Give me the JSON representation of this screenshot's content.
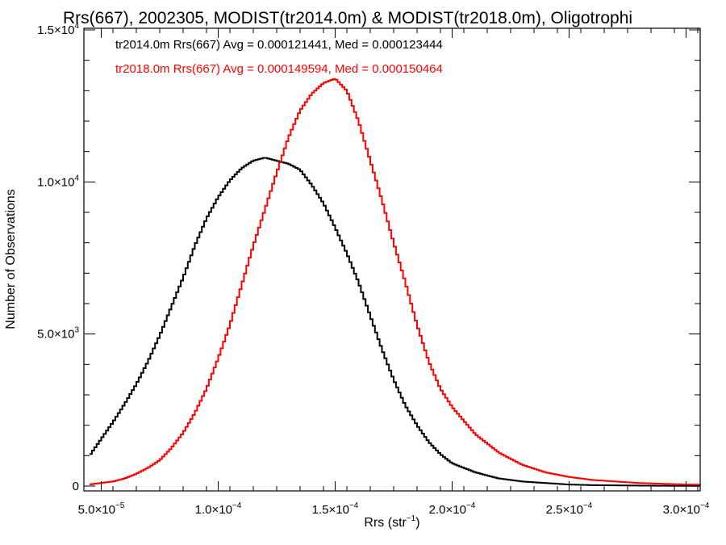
{
  "chart_data": {
    "type": "line",
    "title": "Rrs(667), 2002305, MODIST(tr2014.0m) & MODIST(tr2018.0m), Oligotrophi",
    "xlabel": "Rrs (str",
    "xlabel_sup": "−1",
    "xlabel_end": ")",
    "ylabel": "Number of Observations",
    "xlim": [
      4.5e-05,
      0.00031
    ],
    "ylim": [
      0,
      15000
    ],
    "x_ticks": [
      {
        "value": 5e-05,
        "mant": "5.0×10",
        "exp": "−5"
      },
      {
        "value": 0.0001,
        "mant": "1.0×10",
        "exp": "−4"
      },
      {
        "value": 0.00015,
        "mant": "1.5×10",
        "exp": "−4"
      },
      {
        "value": 0.0002,
        "mant": "2.0×10",
        "exp": "−4"
      },
      {
        "value": 0.00025,
        "mant": "2.5×10",
        "exp": "−4"
      },
      {
        "value": 0.0003,
        "mant": "3.0×10",
        "exp": "−4"
      }
    ],
    "y_ticks": [
      {
        "value": 0,
        "mant": "0",
        "exp": ""
      },
      {
        "value": 5000,
        "mant": "5.0×10",
        "exp": "3"
      },
      {
        "value": 10000,
        "mant": "1.0×10",
        "exp": "4"
      },
      {
        "value": 15000,
        "mant": "1.5×10",
        "exp": "4"
      }
    ],
    "grid": false,
    "legend_position": "top-left",
    "series": [
      {
        "name": "tr2014.0m Rrs(667) Avg = 0.000121441, Med = 0.000123444",
        "color": "#000000",
        "x": [
          4.5e-05,
          5e-05,
          5.5e-05,
          6e-05,
          6.5e-05,
          7e-05,
          7.5e-05,
          8e-05,
          8.5e-05,
          9e-05,
          9.5e-05,
          0.0001,
          0.000105,
          0.00011,
          0.000115,
          0.00012,
          0.000125,
          0.00013,
          0.000135,
          0.00014,
          0.000145,
          0.00015,
          0.000155,
          0.00016,
          0.000165,
          0.00017,
          0.000175,
          0.00018,
          0.000185,
          0.00019,
          0.000195,
          0.0002,
          0.00021,
          0.00022,
          0.00023,
          0.00024,
          0.00025,
          0.00026,
          0.00028,
          0.0003,
          0.00031
        ],
        "y": [
          1000,
          1550,
          2100,
          2700,
          3350,
          4100,
          4950,
          5900,
          6850,
          7900,
          8800,
          9500,
          10050,
          10450,
          10700,
          10800,
          10700,
          10600,
          10400,
          9900,
          9300,
          8500,
          7650,
          6700,
          5600,
          4500,
          3500,
          2650,
          2000,
          1450,
          1050,
          750,
          450,
          250,
          150,
          100,
          50,
          30,
          15,
          5,
          5
        ]
      },
      {
        "name": "tr2018.0m Rrs(667) Avg = 0.000149594, Med = 0.000150464",
        "color": "#ff0000",
        "x": [
          4.5e-05,
          5e-05,
          5.5e-05,
          6e-05,
          6.5e-05,
          7e-05,
          7.5e-05,
          8e-05,
          8.5e-05,
          9e-05,
          9.5e-05,
          0.0001,
          0.000105,
          0.00011,
          0.000115,
          0.00012,
          0.000125,
          0.00013,
          0.000135,
          0.00014,
          0.000145,
          0.00015,
          0.000155,
          0.00016,
          0.000165,
          0.00017,
          0.000175,
          0.00018,
          0.000185,
          0.00019,
          0.000195,
          0.0002,
          0.00021,
          0.00022,
          0.00023,
          0.00024,
          0.00025,
          0.00026,
          0.00028,
          0.0003,
          0.00031
        ],
        "y": [
          50,
          100,
          150,
          250,
          400,
          600,
          850,
          1250,
          1750,
          2400,
          3200,
          4200,
          5300,
          6600,
          7900,
          9100,
          10300,
          11450,
          12350,
          12900,
          13250,
          13400,
          13000,
          12000,
          10700,
          9400,
          8000,
          6700,
          5300,
          4100,
          3200,
          2600,
          1700,
          1100,
          700,
          450,
          300,
          200,
          100,
          50,
          40
        ]
      }
    ]
  }
}
